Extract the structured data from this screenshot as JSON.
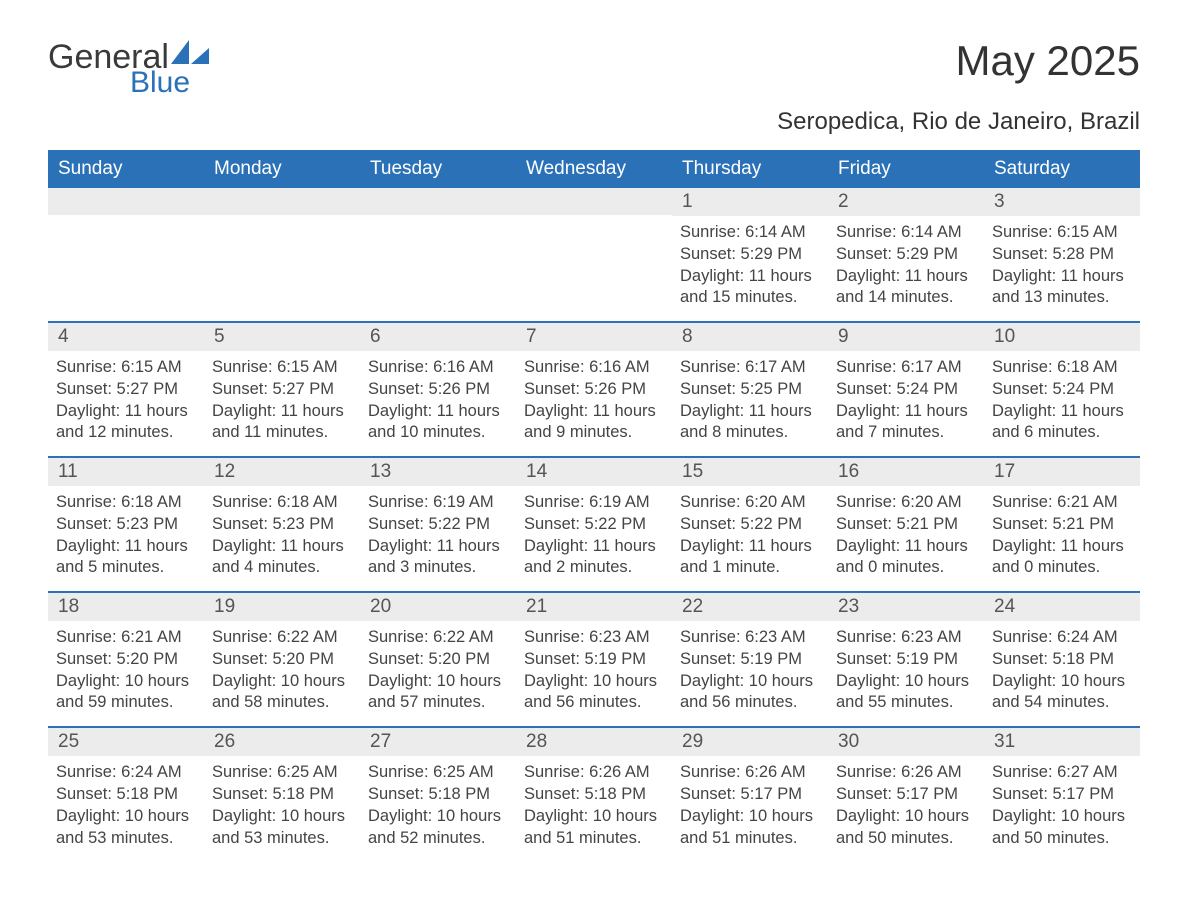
{
  "brand": {
    "word1": "General",
    "word2": "Blue"
  },
  "title": "May 2025",
  "location": "Seropedica, Rio de Janeiro, Brazil",
  "colors": {
    "accent": "#2a71b8",
    "header_text": "#ffffff",
    "daynum_bg": "#ececec",
    "body_text": "#444444",
    "page_bg": "#ffffff"
  },
  "weekdays": [
    "Sunday",
    "Monday",
    "Tuesday",
    "Wednesday",
    "Thursday",
    "Friday",
    "Saturday"
  ],
  "weeks": [
    [
      {
        "n": "",
        "sunrise": "",
        "sunset": "",
        "daylight": ""
      },
      {
        "n": "",
        "sunrise": "",
        "sunset": "",
        "daylight": ""
      },
      {
        "n": "",
        "sunrise": "",
        "sunset": "",
        "daylight": ""
      },
      {
        "n": "",
        "sunrise": "",
        "sunset": "",
        "daylight": ""
      },
      {
        "n": "1",
        "sunrise": "Sunrise: 6:14 AM",
        "sunset": "Sunset: 5:29 PM",
        "daylight": "Daylight: 11 hours and 15 minutes."
      },
      {
        "n": "2",
        "sunrise": "Sunrise: 6:14 AM",
        "sunset": "Sunset: 5:29 PM",
        "daylight": "Daylight: 11 hours and 14 minutes."
      },
      {
        "n": "3",
        "sunrise": "Sunrise: 6:15 AM",
        "sunset": "Sunset: 5:28 PM",
        "daylight": "Daylight: 11 hours and 13 minutes."
      }
    ],
    [
      {
        "n": "4",
        "sunrise": "Sunrise: 6:15 AM",
        "sunset": "Sunset: 5:27 PM",
        "daylight": "Daylight: 11 hours and 12 minutes."
      },
      {
        "n": "5",
        "sunrise": "Sunrise: 6:15 AM",
        "sunset": "Sunset: 5:27 PM",
        "daylight": "Daylight: 11 hours and 11 minutes."
      },
      {
        "n": "6",
        "sunrise": "Sunrise: 6:16 AM",
        "sunset": "Sunset: 5:26 PM",
        "daylight": "Daylight: 11 hours and 10 minutes."
      },
      {
        "n": "7",
        "sunrise": "Sunrise: 6:16 AM",
        "sunset": "Sunset: 5:26 PM",
        "daylight": "Daylight: 11 hours and 9 minutes."
      },
      {
        "n": "8",
        "sunrise": "Sunrise: 6:17 AM",
        "sunset": "Sunset: 5:25 PM",
        "daylight": "Daylight: 11 hours and 8 minutes."
      },
      {
        "n": "9",
        "sunrise": "Sunrise: 6:17 AM",
        "sunset": "Sunset: 5:24 PM",
        "daylight": "Daylight: 11 hours and 7 minutes."
      },
      {
        "n": "10",
        "sunrise": "Sunrise: 6:18 AM",
        "sunset": "Sunset: 5:24 PM",
        "daylight": "Daylight: 11 hours and 6 minutes."
      }
    ],
    [
      {
        "n": "11",
        "sunrise": "Sunrise: 6:18 AM",
        "sunset": "Sunset: 5:23 PM",
        "daylight": "Daylight: 11 hours and 5 minutes."
      },
      {
        "n": "12",
        "sunrise": "Sunrise: 6:18 AM",
        "sunset": "Sunset: 5:23 PM",
        "daylight": "Daylight: 11 hours and 4 minutes."
      },
      {
        "n": "13",
        "sunrise": "Sunrise: 6:19 AM",
        "sunset": "Sunset: 5:22 PM",
        "daylight": "Daylight: 11 hours and 3 minutes."
      },
      {
        "n": "14",
        "sunrise": "Sunrise: 6:19 AM",
        "sunset": "Sunset: 5:22 PM",
        "daylight": "Daylight: 11 hours and 2 minutes."
      },
      {
        "n": "15",
        "sunrise": "Sunrise: 6:20 AM",
        "sunset": "Sunset: 5:22 PM",
        "daylight": "Daylight: 11 hours and 1 minute."
      },
      {
        "n": "16",
        "sunrise": "Sunrise: 6:20 AM",
        "sunset": "Sunset: 5:21 PM",
        "daylight": "Daylight: 11 hours and 0 minutes."
      },
      {
        "n": "17",
        "sunrise": "Sunrise: 6:21 AM",
        "sunset": "Sunset: 5:21 PM",
        "daylight": "Daylight: 11 hours and 0 minutes."
      }
    ],
    [
      {
        "n": "18",
        "sunrise": "Sunrise: 6:21 AM",
        "sunset": "Sunset: 5:20 PM",
        "daylight": "Daylight: 10 hours and 59 minutes."
      },
      {
        "n": "19",
        "sunrise": "Sunrise: 6:22 AM",
        "sunset": "Sunset: 5:20 PM",
        "daylight": "Daylight: 10 hours and 58 minutes."
      },
      {
        "n": "20",
        "sunrise": "Sunrise: 6:22 AM",
        "sunset": "Sunset: 5:20 PM",
        "daylight": "Daylight: 10 hours and 57 minutes."
      },
      {
        "n": "21",
        "sunrise": "Sunrise: 6:23 AM",
        "sunset": "Sunset: 5:19 PM",
        "daylight": "Daylight: 10 hours and 56 minutes."
      },
      {
        "n": "22",
        "sunrise": "Sunrise: 6:23 AM",
        "sunset": "Sunset: 5:19 PM",
        "daylight": "Daylight: 10 hours and 56 minutes."
      },
      {
        "n": "23",
        "sunrise": "Sunrise: 6:23 AM",
        "sunset": "Sunset: 5:19 PM",
        "daylight": "Daylight: 10 hours and 55 minutes."
      },
      {
        "n": "24",
        "sunrise": "Sunrise: 6:24 AM",
        "sunset": "Sunset: 5:18 PM",
        "daylight": "Daylight: 10 hours and 54 minutes."
      }
    ],
    [
      {
        "n": "25",
        "sunrise": "Sunrise: 6:24 AM",
        "sunset": "Sunset: 5:18 PM",
        "daylight": "Daylight: 10 hours and 53 minutes."
      },
      {
        "n": "26",
        "sunrise": "Sunrise: 6:25 AM",
        "sunset": "Sunset: 5:18 PM",
        "daylight": "Daylight: 10 hours and 53 minutes."
      },
      {
        "n": "27",
        "sunrise": "Sunrise: 6:25 AM",
        "sunset": "Sunset: 5:18 PM",
        "daylight": "Daylight: 10 hours and 52 minutes."
      },
      {
        "n": "28",
        "sunrise": "Sunrise: 6:26 AM",
        "sunset": "Sunset: 5:18 PM",
        "daylight": "Daylight: 10 hours and 51 minutes."
      },
      {
        "n": "29",
        "sunrise": "Sunrise: 6:26 AM",
        "sunset": "Sunset: 5:17 PM",
        "daylight": "Daylight: 10 hours and 51 minutes."
      },
      {
        "n": "30",
        "sunrise": "Sunrise: 6:26 AM",
        "sunset": "Sunset: 5:17 PM",
        "daylight": "Daylight: 10 hours and 50 minutes."
      },
      {
        "n": "31",
        "sunrise": "Sunrise: 6:27 AM",
        "sunset": "Sunset: 5:17 PM",
        "daylight": "Daylight: 10 hours and 50 minutes."
      }
    ]
  ]
}
